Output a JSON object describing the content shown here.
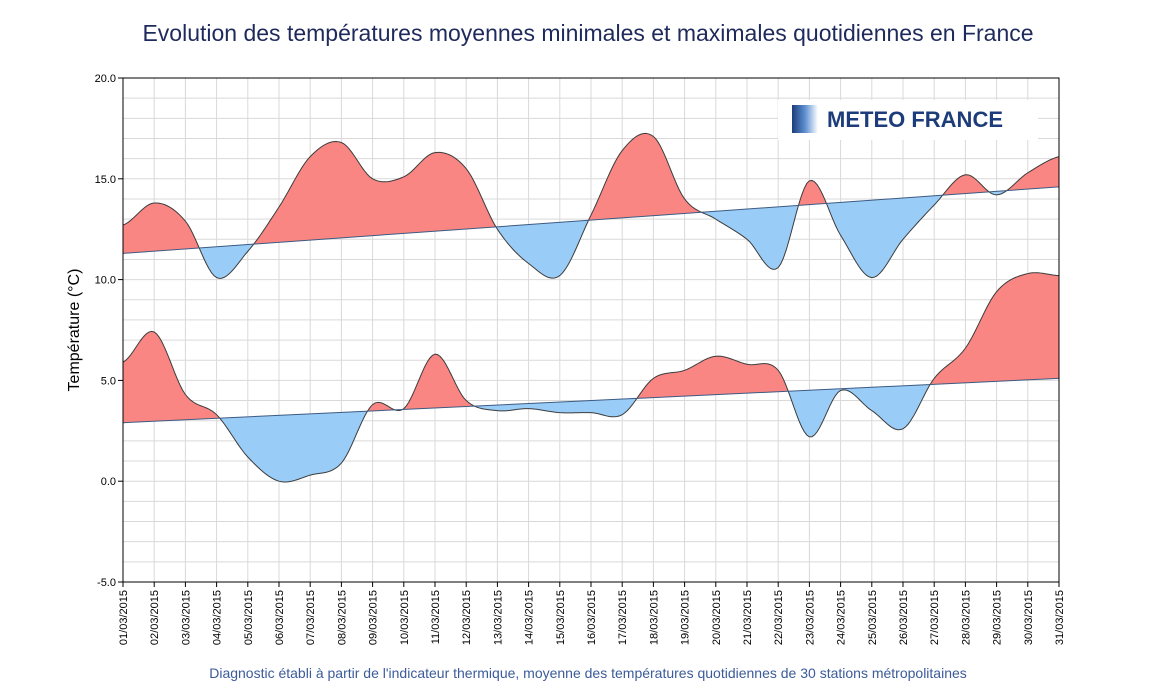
{
  "chart_data": {
    "type": "area",
    "title": "Evolution des températures moyennes minimales et maximales quotidiennes en France",
    "footer": "Diagnostic établi à partir de l'indicateur thermique, moyenne des températures quotidiennes de 30 stations métropolitaines",
    "ylabel": "Température (°C)",
    "xlabel": "",
    "ylim": [
      -5,
      20
    ],
    "yticks": [
      "20.0",
      "15.0",
      "10.0",
      "5.0",
      "0.0",
      "-5.0"
    ],
    "ytick_values": [
      20,
      15,
      10,
      5,
      0,
      -5
    ],
    "categories": [
      "01/03/2015",
      "02/03/2015",
      "03/03/2015",
      "04/03/2015",
      "05/03/2015",
      "06/03/2015",
      "07/03/2015",
      "08/03/2015",
      "09/03/2015",
      "10/03/2015",
      "11/03/2015",
      "12/03/2015",
      "13/03/2015",
      "14/03/2015",
      "15/03/2015",
      "16/03/2015",
      "17/03/2015",
      "18/03/2015",
      "19/03/2015",
      "20/03/2015",
      "21/03/2015",
      "22/03/2015",
      "23/03/2015",
      "24/03/2015",
      "25/03/2015",
      "26/03/2015",
      "27/03/2015",
      "28/03/2015",
      "29/03/2015",
      "30/03/2015",
      "31/03/2015"
    ],
    "grid": true,
    "series": [
      {
        "values": [
          12.7,
          13.8,
          12.9,
          10.1,
          11.4,
          13.6,
          16.1,
          16.8,
          15.0,
          15.1,
          16.3,
          15.5,
          12.5,
          10.8,
          10.2,
          13.2,
          16.4,
          17.1,
          14.0,
          13.0,
          12.0,
          10.6,
          14.9,
          12.2,
          10.1,
          12.0,
          13.7,
          15.2,
          14.2,
          15.3,
          16.1
        ],
        "normal": [
          11.3,
          14.6
        ]
      },
      {
        "values": [
          5.9,
          7.4,
          4.3,
          3.3,
          1.2,
          0.0,
          0.3,
          0.9,
          3.8,
          3.6,
          6.3,
          4.0,
          3.5,
          3.6,
          3.4,
          3.4,
          3.3,
          5.1,
          5.5,
          6.2,
          5.8,
          5.5,
          2.2,
          4.5,
          3.5,
          2.6,
          5.1,
          6.6,
          9.4,
          10.3,
          10.2
        ],
        "normal": [
          2.9,
          5.1
        ]
      }
    ],
    "colors": {
      "above": "#f98683",
      "below": "#99cdf7",
      "curve": "#3c3c3c",
      "normal": "#3c5a82",
      "grid": "#d9d9d9"
    },
    "logo": {
      "text": "METEO FRANCE",
      "position": "top-right"
    }
  }
}
